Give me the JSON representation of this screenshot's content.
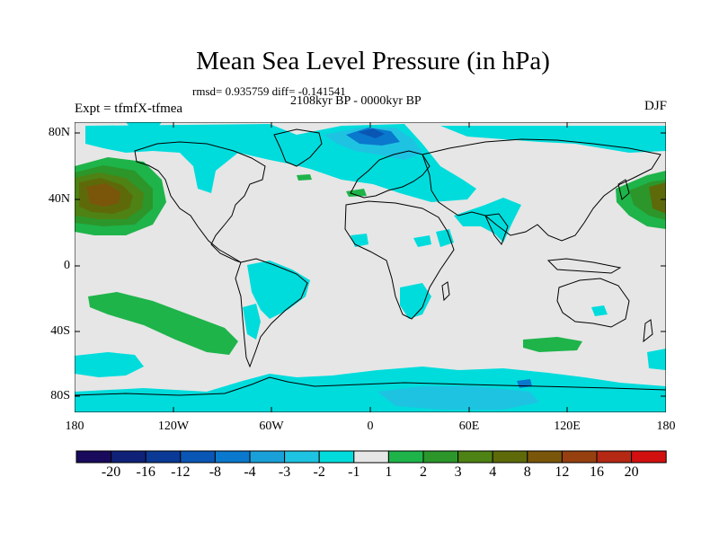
{
  "title": "Mean Sea Level Pressure (in hPa)",
  "stats": "rmsd= 0.935759 diff= -0.141541",
  "period": "2108kyr BP - 0000kyr BP",
  "experiment": "Expt = tfmfX-tfmea",
  "season": "DJF",
  "lat_labels": [
    "80N",
    "40N",
    "0",
    "40S",
    "80S"
  ],
  "lon_labels": [
    "180",
    "120W",
    "60W",
    "0",
    "60E",
    "120E",
    "180"
  ],
  "colorbar": {
    "labels": [
      "-20",
      "-16",
      "-12",
      "-8",
      "-4",
      "-3",
      "-2",
      "-1",
      "1",
      "2",
      "3",
      "4",
      "8",
      "12",
      "16",
      "20"
    ],
    "colors": [
      "#1a0a5c",
      "#102278",
      "#0a3a96",
      "#0a56b4",
      "#0a78cc",
      "#1aa0d8",
      "#1ec3e2",
      "#00dcdc",
      "#e6e6e6",
      "#1eb44a",
      "#2c962a",
      "#4e8214",
      "#5e6a0a",
      "#7a560a",
      "#964010",
      "#b42814",
      "#d21010"
    ]
  },
  "legend_colors": {
    "ocean": "#e6e6e6",
    "neg_light": "#00dcdc",
    "neg_mid": "#1ec3e2",
    "neg_dark": "#0a78cc",
    "neg_deep": "#0a56b4",
    "pos_light": "#1eb44a",
    "pos_mid": "#2c962a",
    "pos_dark": "#5e6a0a",
    "pos_deep": "#7a560a",
    "coast": "#000000"
  }
}
